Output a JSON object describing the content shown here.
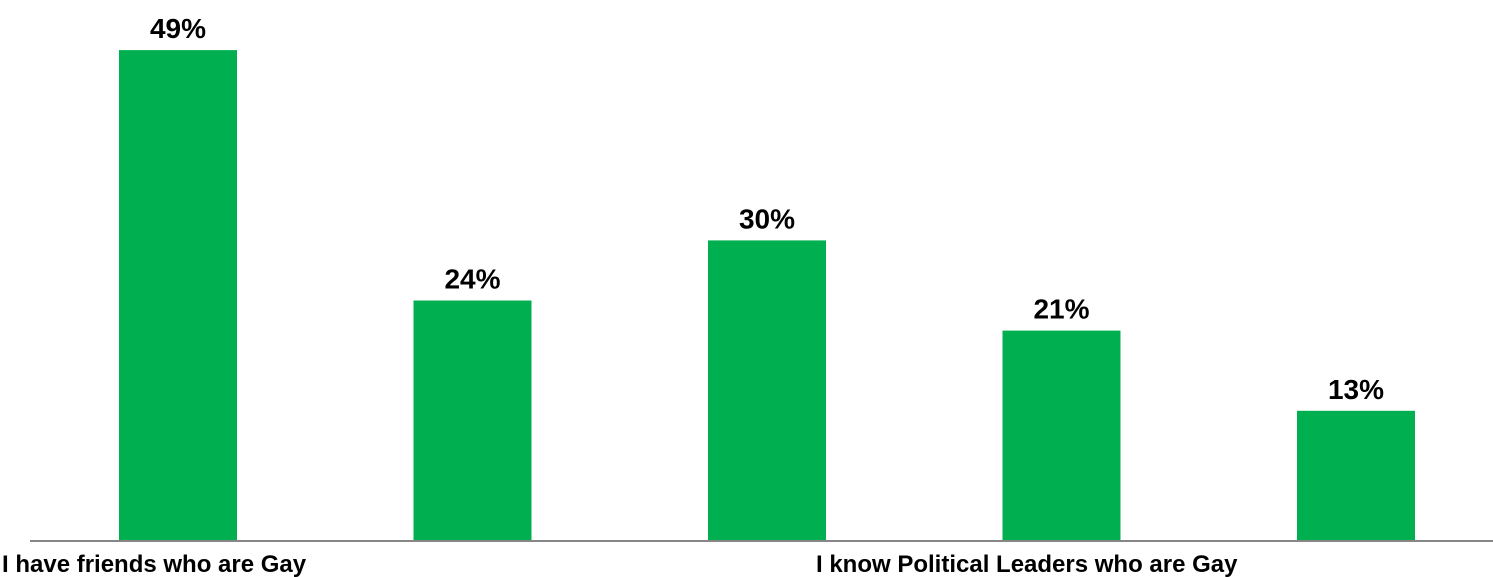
{
  "chart_data": {
    "type": "bar",
    "categories": [
      "I have friends who are Gay",
      "",
      "",
      "I know Political Leaders who are Gay",
      ""
    ],
    "values": [
      49,
      24,
      30,
      21,
      13
    ],
    "value_labels": [
      "49%",
      "24%",
      "30%",
      "21%",
      "13%"
    ],
    "unit": "%",
    "title": "",
    "xlabel": "",
    "ylabel": "",
    "ylim": [
      0,
      52
    ],
    "grid": false,
    "legend": "none",
    "bar_color": "#00b050",
    "axis_color": "#868686"
  }
}
